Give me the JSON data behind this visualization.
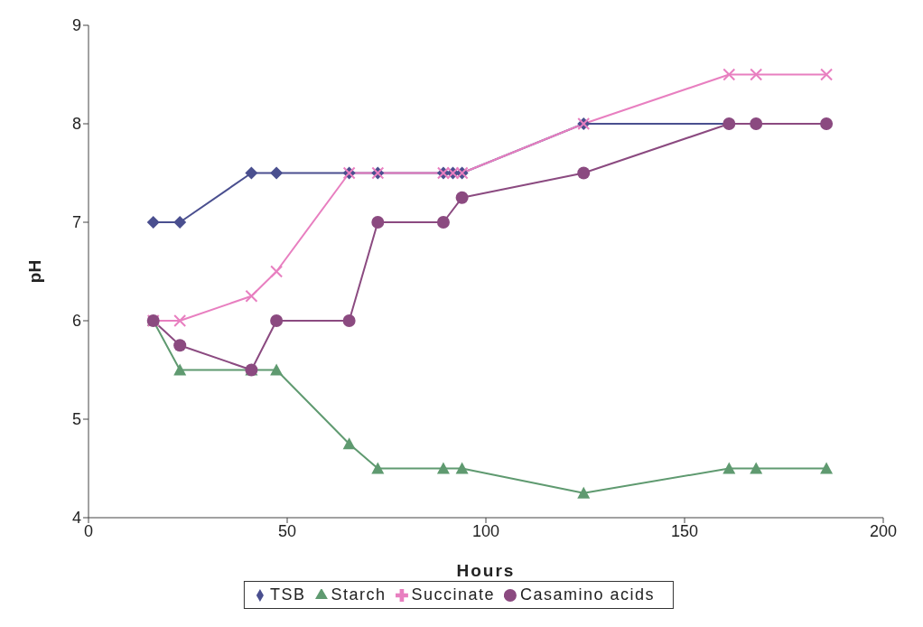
{
  "chart_data": {
    "type": "line",
    "xlabel": "Hours",
    "ylabel": "pH",
    "xlim": [
      0,
      200
    ],
    "xticks": [
      0,
      50,
      100,
      150,
      200
    ],
    "ylim": [
      4,
      9
    ],
    "yticks": [
      4,
      5,
      6,
      7,
      8,
      9
    ],
    "grid": false,
    "legend": "bottom",
    "series": [
      {
        "name": "TSB",
        "color": "#4a4f8f",
        "marker": "diamond",
        "x": [
          16.3,
          23,
          41,
          47.3,
          65.6,
          72.8,
          89.3,
          91.7,
          94,
          124.6,
          161.2,
          168,
          185.7
        ],
        "values": [
          7,
          7,
          7.5,
          7.5,
          7.5,
          7.5,
          7.5,
          7.5,
          7.5,
          8,
          8,
          8,
          8
        ]
      },
      {
        "name": "Starch",
        "color": "#5f9a70",
        "marker": "triangle",
        "x": [
          16.3,
          23,
          41,
          47.3,
          65.6,
          72.8,
          89.3,
          94,
          124.6,
          161.2,
          168,
          185.7
        ],
        "values": [
          6,
          5.5,
          5.5,
          5.5,
          4.75,
          4.5,
          4.5,
          4.5,
          4.25,
          4.5,
          4.5,
          4.5
        ]
      },
      {
        "name": "Succinate",
        "color": "#e87fc0",
        "marker": "cross",
        "x": [
          16.3,
          23,
          41,
          47.3,
          65.6,
          72.8,
          89.3,
          91.7,
          94,
          124.6,
          161.2,
          168,
          185.7
        ],
        "values": [
          6,
          6,
          6.25,
          6.5,
          7.5,
          7.5,
          7.5,
          7.5,
          7.5,
          8,
          8.5,
          8.5,
          8.5
        ]
      },
      {
        "name": "Casamino acids",
        "color": "#8b4a80",
        "marker": "circle",
        "x": [
          16.3,
          23,
          41,
          47.3,
          65.6,
          72.8,
          89.3,
          94,
          124.6,
          161.2,
          168,
          185.7
        ],
        "values": [
          6,
          5.75,
          5.5,
          6,
          6,
          7,
          7,
          7.25,
          7.5,
          8,
          8,
          8
        ]
      }
    ]
  }
}
